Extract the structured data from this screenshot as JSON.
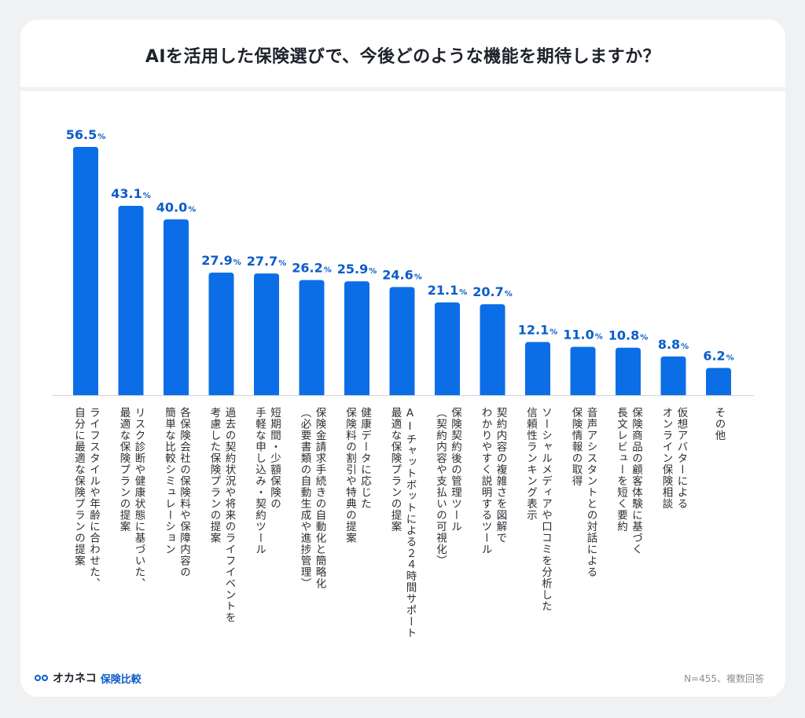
{
  "title": "AIを活用した保険選びで、今後どのような機能を期待しますか？",
  "footer": {
    "logo_icon": "cat-eyes-logo-icon",
    "logo_text_brand": "オカネコ",
    "logo_text_service": "保険比較",
    "note": "N=455、複数回答"
  },
  "colors": {
    "bar": "#0b6ee6",
    "value_label": "#0b5cc9",
    "background": "#eff1f3",
    "card": "#ffffff"
  },
  "chart_data": {
    "type": "bar",
    "title": "AIを活用した保険選びで、今後どのような機能を期待しますか？",
    "xlabel": "",
    "ylabel": "",
    "unit": "%",
    "ylim": [
      0,
      56.5
    ],
    "grid": false,
    "legend": "none",
    "categories": [
      "自分に最適な保険プランの提案\nライフスタイルや年齢に合わせた、",
      "最適な保険プランの提案\nリスク診断や健康状態に基づいた、",
      "簡単な比較シミュレーション\n各保険会社の保険料や保障内容の",
      "考慮した保険プランの提案\n過去の契約状況や将来のライフイベントを",
      "手軽な申し込み・契約ツール\n短期間・少額保険の",
      "（必要書類の自動生成や進捗管理）\n保険金請求手続きの自動化と簡略化",
      "保険料の割引や特典の提案\n健康データに応じた",
      "最適な保険プランの提案\nAIチャットボットによる２４時間サポート",
      "（契約内容や支払いの可視化）\n保険契約後の管理ツール",
      "わかりやすく説明するツール\n契約内容の複雑さを図解で",
      "信頼性ランキング表示\nソーシャルメディアや口コミを分析した",
      "保険情報の取得\n音声アシスタントとの対話による",
      "長文レビューを短く要約\n保険商品の顧客体験に基づく",
      "オンライン保険相談\n仮想アバターによる",
      "その他"
    ],
    "labels": [
      [
        "ライフスタイルや年齢に合わせた、",
        "自分に最適な保険プランの提案"
      ],
      [
        "リスク診断や健康状態に基づいた、",
        "最適な保険プランの提案"
      ],
      [
        "各保険会社の保険料や保障内容の",
        "簡単な比較シミュレーション"
      ],
      [
        "過去の契約状況や将来のライフイベントを",
        "考慮した保険プランの提案"
      ],
      [
        "短期間・少額保険の",
        "手軽な申し込み・契約ツール"
      ],
      [
        "保険金請求手続きの自動化と簡略化",
        "（必要書類の自動生成や進捗管理）"
      ],
      [
        "健康データに応じた",
        "保険料の割引や特典の提案"
      ],
      [
        "AIチャットボットによる２４時間サポート",
        "最適な保険プランの提案"
      ],
      [
        "保険契約後の管理ツール",
        "（契約内容や支払いの可視化）"
      ],
      [
        "契約内容の複雑さを図解で",
        "わかりやすく説明するツール"
      ],
      [
        "ソーシャルメディアや口コミを分析した",
        "信頼性ランキング表示"
      ],
      [
        "音声アシスタントとの対話による",
        "保険情報の取得"
      ],
      [
        "保険商品の顧客体験に基づく",
        "長文レビューを短く要約"
      ],
      [
        "仮想アバターによる",
        "オンライン保険相談"
      ],
      [
        "その他"
      ]
    ],
    "values": [
      56.5,
      43.1,
      40.0,
      27.9,
      27.7,
      26.2,
      25.9,
      24.6,
      21.1,
      20.7,
      12.1,
      11.0,
      10.8,
      8.8,
      6.2
    ],
    "value_labels": [
      "56.5",
      "43.1",
      "40.0",
      "27.9",
      "27.7",
      "26.2",
      "25.9",
      "24.6",
      "21.1",
      "20.7",
      "12.1",
      "11.0",
      "10.8",
      "8.8",
      "6.2"
    ],
    "annotation": "N=455、複数回答"
  }
}
